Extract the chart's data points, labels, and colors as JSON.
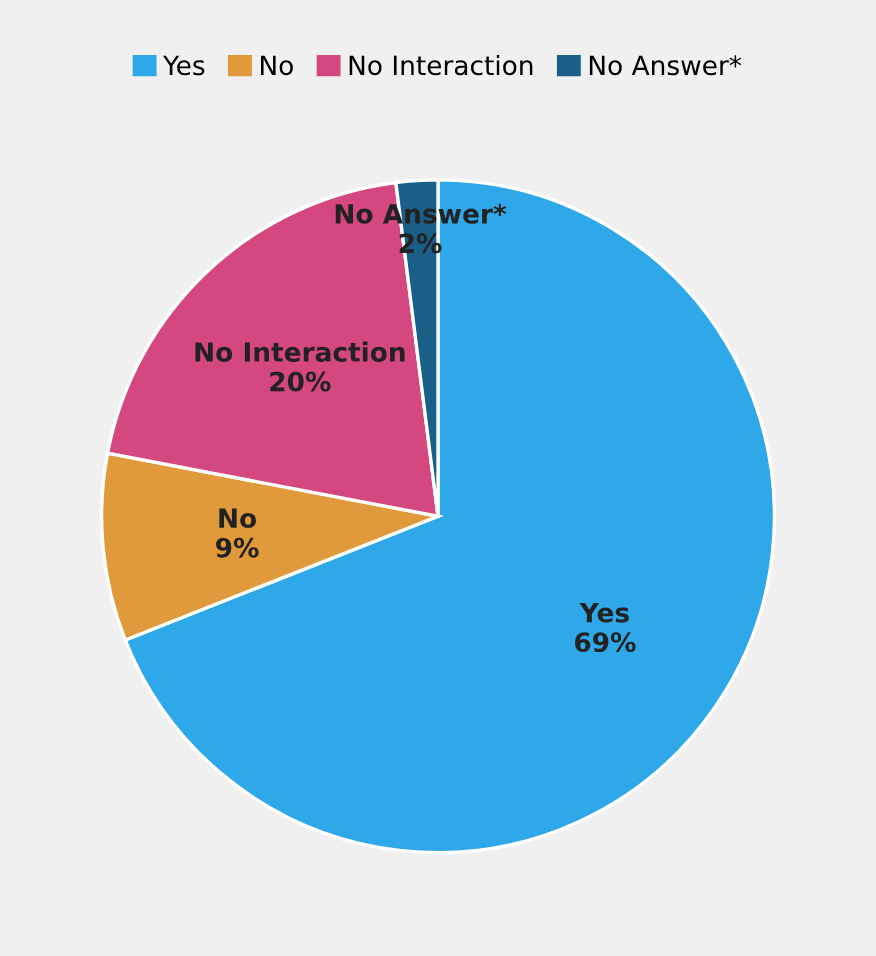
{
  "chart_data": {
    "type": "pie",
    "categories": [
      "Yes",
      "No",
      "No Interaction",
      "No Answer*"
    ],
    "values": [
      69,
      9,
      20,
      2
    ],
    "colors": [
      "#2ea8e8",
      "#e09a3c",
      "#d4477f",
      "#1a5f87"
    ],
    "value_labels": [
      "69%",
      "9%",
      "20%",
      "2%"
    ],
    "legend": "top"
  }
}
